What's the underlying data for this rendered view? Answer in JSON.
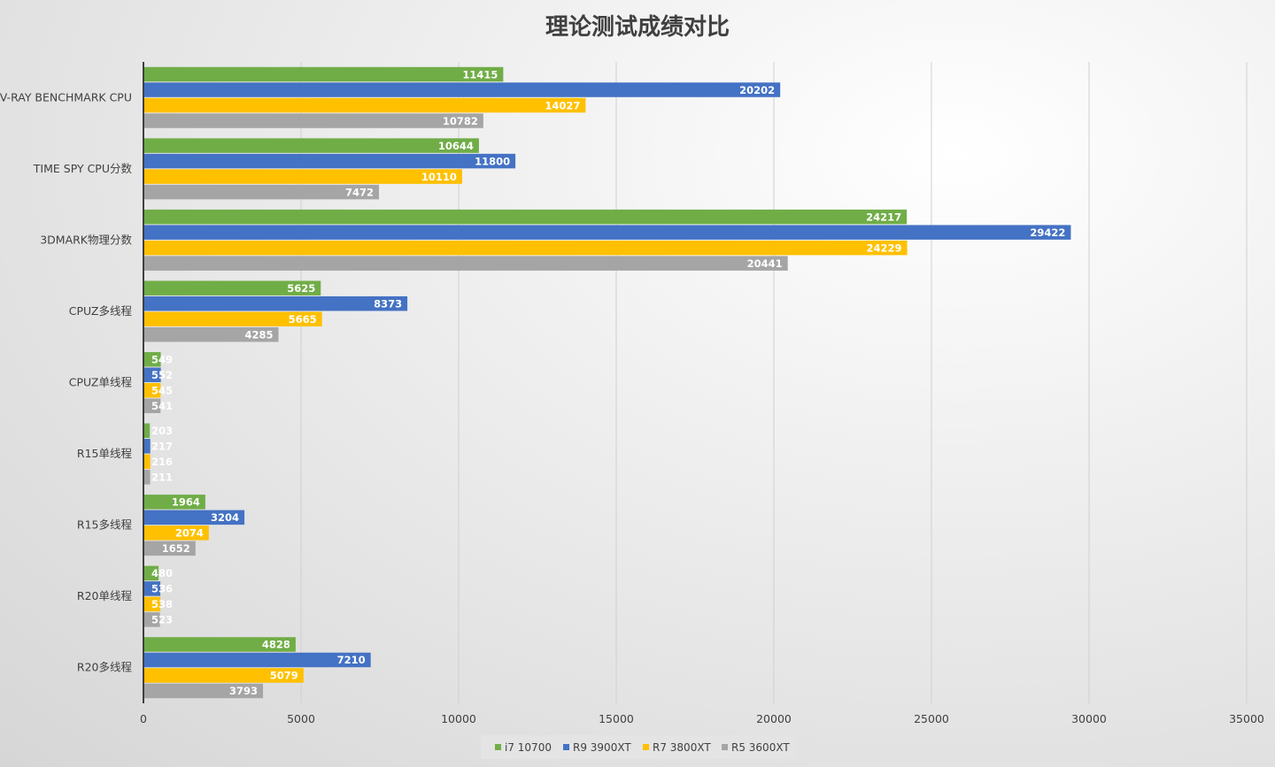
{
  "chart_data": {
    "type": "bar",
    "orientation": "horizontal",
    "title": "理论测试成绩对比",
    "categories": [
      "V-RAY BENCHMARK CPU",
      "TIME SPY CPU分数",
      "3DMARK物理分数",
      "CPUZ多线程",
      "CPUZ单线程",
      "R15单线程",
      "R15多线程",
      "R20单线程",
      "R20多线程"
    ],
    "series": [
      {
        "name": "i7 10700",
        "color": "#70ad47",
        "values": [
          11415,
          10644,
          24217,
          5625,
          549,
          203,
          1964,
          480,
          4828
        ]
      },
      {
        "name": "R9 3900XT",
        "color": "#4472c4",
        "values": [
          20202,
          11800,
          29422,
          8373,
          552,
          217,
          3204,
          536,
          7210
        ]
      },
      {
        "name": "R7 3800XT",
        "color": "#ffc000",
        "values": [
          14027,
          10110,
          24229,
          5665,
          545,
          216,
          2074,
          538,
          5079
        ]
      },
      {
        "name": "R5 3600XT",
        "color": "#a5a5a5",
        "values": [
          10782,
          7472,
          20441,
          4285,
          541,
          211,
          1652,
          523,
          3793
        ]
      }
    ],
    "xlim": [
      0,
      35000
    ],
    "xticks": [
      0,
      5000,
      10000,
      15000,
      20000,
      25000,
      30000,
      35000
    ],
    "grid": true,
    "data_labels": true,
    "legend_position": "bottom"
  }
}
